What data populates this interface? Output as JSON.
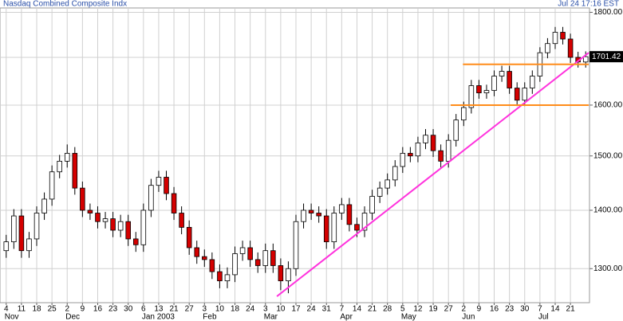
{
  "chart_data": {
    "type": "candlestick",
    "title": "Nasdaq Combined Composite Indx",
    "timestamp": "Jul 24 17:16 EST",
    "categories": [
      "4",
      null,
      "11",
      null,
      "18",
      null,
      "25",
      null,
      "2",
      null,
      "9",
      null,
      "16",
      null,
      "23",
      null,
      "30",
      null,
      "6",
      null,
      "13",
      null,
      "21",
      null,
      "27",
      null,
      "3",
      null,
      "10",
      null,
      "18",
      null,
      "24",
      null,
      "3",
      null,
      "10",
      null,
      "17",
      null,
      "24",
      null,
      "31",
      null,
      "7",
      null,
      "14",
      null,
      "21",
      null,
      "28",
      null,
      "5",
      null,
      "12",
      null,
      "19",
      null,
      "27",
      null,
      "2",
      null,
      "9",
      null,
      "16",
      null,
      "23",
      null,
      "30",
      null,
      "7",
      null,
      "14",
      null,
      "21",
      null,
      null
    ],
    "months": [
      "Nov",
      null,
      null,
      null,
      null,
      null,
      null,
      null,
      "Dec",
      null,
      null,
      null,
      null,
      null,
      null,
      null,
      null,
      null,
      "Jan 2003",
      null,
      null,
      null,
      null,
      null,
      null,
      null,
      "Feb",
      null,
      null,
      null,
      null,
      null,
      null,
      null,
      "Mar",
      null,
      null,
      null,
      null,
      null,
      null,
      null,
      null,
      null,
      "Apr",
      null,
      null,
      null,
      null,
      null,
      null,
      null,
      "May",
      null,
      null,
      null,
      null,
      null,
      null,
      null,
      "Jun",
      null,
      null,
      null,
      null,
      null,
      null,
      null,
      null,
      null,
      "Jul",
      null,
      null,
      null,
      null,
      null,
      null
    ],
    "open": [
      1330,
      1345,
      1390,
      1330,
      1350,
      1395,
      1420,
      1470,
      1490,
      1505,
      1440,
      1400,
      1395,
      1380,
      1385,
      1365,
      1380,
      1350,
      1340,
      1400,
      1445,
      1460,
      1430,
      1395,
      1370,
      1335,
      1320,
      1315,
      1295,
      1280,
      1290,
      1325,
      1335,
      1315,
      1305,
      1330,
      1305,
      1280,
      1300,
      1380,
      1400,
      1395,
      1390,
      1345,
      1395,
      1410,
      1375,
      1365,
      1395,
      1425,
      1440,
      1455,
      1480,
      1505,
      1500,
      1525,
      1540,
      1510,
      1490,
      1530,
      1570,
      1595,
      1640,
      1625,
      1630,
      1660,
      1670,
      1635,
      1610,
      1635,
      1660,
      1710,
      1730,
      1755,
      1740,
      1700,
      1690
    ],
    "high": [
      1357,
      1402,
      1402,
      1362,
      1407,
      1432,
      1482,
      1502,
      1522,
      1517,
      1452,
      1412,
      1407,
      1397,
      1397,
      1392,
      1392,
      1362,
      1412,
      1457,
      1472,
      1472,
      1442,
      1407,
      1382,
      1347,
      1332,
      1327,
      1307,
      1302,
      1337,
      1347,
      1347,
      1327,
      1342,
      1342,
      1317,
      1312,
      1392,
      1412,
      1412,
      1407,
      1402,
      1407,
      1422,
      1422,
      1387,
      1407,
      1437,
      1452,
      1467,
      1492,
      1517,
      1517,
      1537,
      1552,
      1552,
      1522,
      1542,
      1582,
      1607,
      1652,
      1652,
      1642,
      1672,
      1682,
      1682,
      1647,
      1647,
      1672,
      1722,
      1742,
      1767,
      1767,
      1752,
      1712,
      1713
    ],
    "low": [
      1318,
      1333,
      1318,
      1318,
      1338,
      1383,
      1408,
      1458,
      1478,
      1428,
      1388,
      1383,
      1368,
      1368,
      1353,
      1353,
      1338,
      1328,
      1328,
      1388,
      1433,
      1418,
      1383,
      1358,
      1323,
      1308,
      1303,
      1283,
      1268,
      1268,
      1278,
      1313,
      1303,
      1293,
      1293,
      1293,
      1265,
      1260,
      1288,
      1368,
      1383,
      1378,
      1333,
      1333,
      1383,
      1363,
      1353,
      1353,
      1383,
      1413,
      1428,
      1443,
      1468,
      1488,
      1488,
      1513,
      1498,
      1478,
      1478,
      1518,
      1558,
      1583,
      1613,
      1613,
      1618,
      1648,
      1623,
      1598,
      1598,
      1623,
      1648,
      1698,
      1718,
      1728,
      1688,
      1678,
      1678
    ],
    "close": [
      1345,
      1390,
      1330,
      1350,
      1395,
      1420,
      1470,
      1490,
      1505,
      1440,
      1400,
      1395,
      1380,
      1385,
      1365,
      1380,
      1350,
      1340,
      1400,
      1445,
      1460,
      1430,
      1395,
      1370,
      1335,
      1320,
      1315,
      1295,
      1280,
      1290,
      1325,
      1335,
      1315,
      1305,
      1330,
      1305,
      1280,
      1300,
      1380,
      1400,
      1395,
      1390,
      1345,
      1395,
      1410,
      1375,
      1365,
      1395,
      1425,
      1440,
      1455,
      1480,
      1505,
      1500,
      1525,
      1540,
      1510,
      1490,
      1530,
      1570,
      1595,
      1640,
      1625,
      1630,
      1660,
      1670,
      1635,
      1610,
      1635,
      1660,
      1710,
      1730,
      1755,
      1740,
      1700,
      1690,
      1701.42
    ],
    "up_color": "#ffffff",
    "down_color": "#d40000",
    "ylim": [
      1245,
      1810
    ],
    "log_y": true,
    "yticks": [
      {
        "value": 1300,
        "label": "1300.00"
      },
      {
        "value": 1400,
        "label": "1400.00"
      },
      {
        "value": 1500,
        "label": "1500.00"
      },
      {
        "value": 1600,
        "label": "1600.00"
      },
      {
        "value": 1700,
        "label": "1700.00"
      },
      {
        "value": 1800,
        "label": "1800.00"
      }
    ],
    "grid": true,
    "lines": [
      {
        "color": "#ff33dd",
        "from": [
          35.5,
          1255
        ],
        "to": [
          76.4,
          1710
        ]
      },
      {
        "color": "#ff8c1a",
        "from": [
          59.9,
          1685
        ],
        "to": [
          76.4,
          1685
        ]
      },
      {
        "color": "#ff8c1a",
        "from": [
          58.3,
          1600
        ],
        "to": [
          76.4,
          1600
        ]
      }
    ]
  }
}
